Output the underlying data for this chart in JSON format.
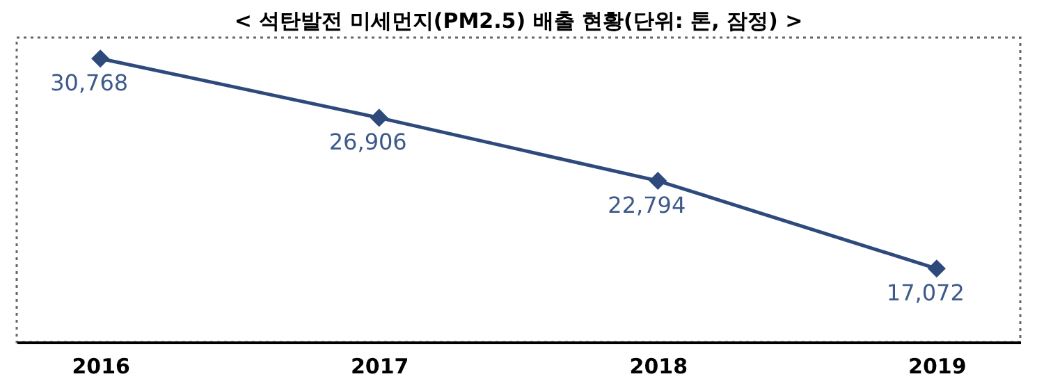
{
  "chart_data": {
    "type": "line",
    "title": "< 석탄발전 미세먼지(PM2.5) 배출 현황(단위: 톤, 잠정) >",
    "categories": [
      "2016",
      "2017",
      "2018",
      "2019"
    ],
    "series": [
      {
        "color": "#2e4a7d",
        "values": [
          30768,
          26906,
          22794,
          17072
        ],
        "value_labels": [
          "30,768",
          "26,906",
          "22,794",
          "17,072"
        ]
      }
    ],
    "marker": "diamond",
    "line_style": "solid",
    "grid": false
  }
}
